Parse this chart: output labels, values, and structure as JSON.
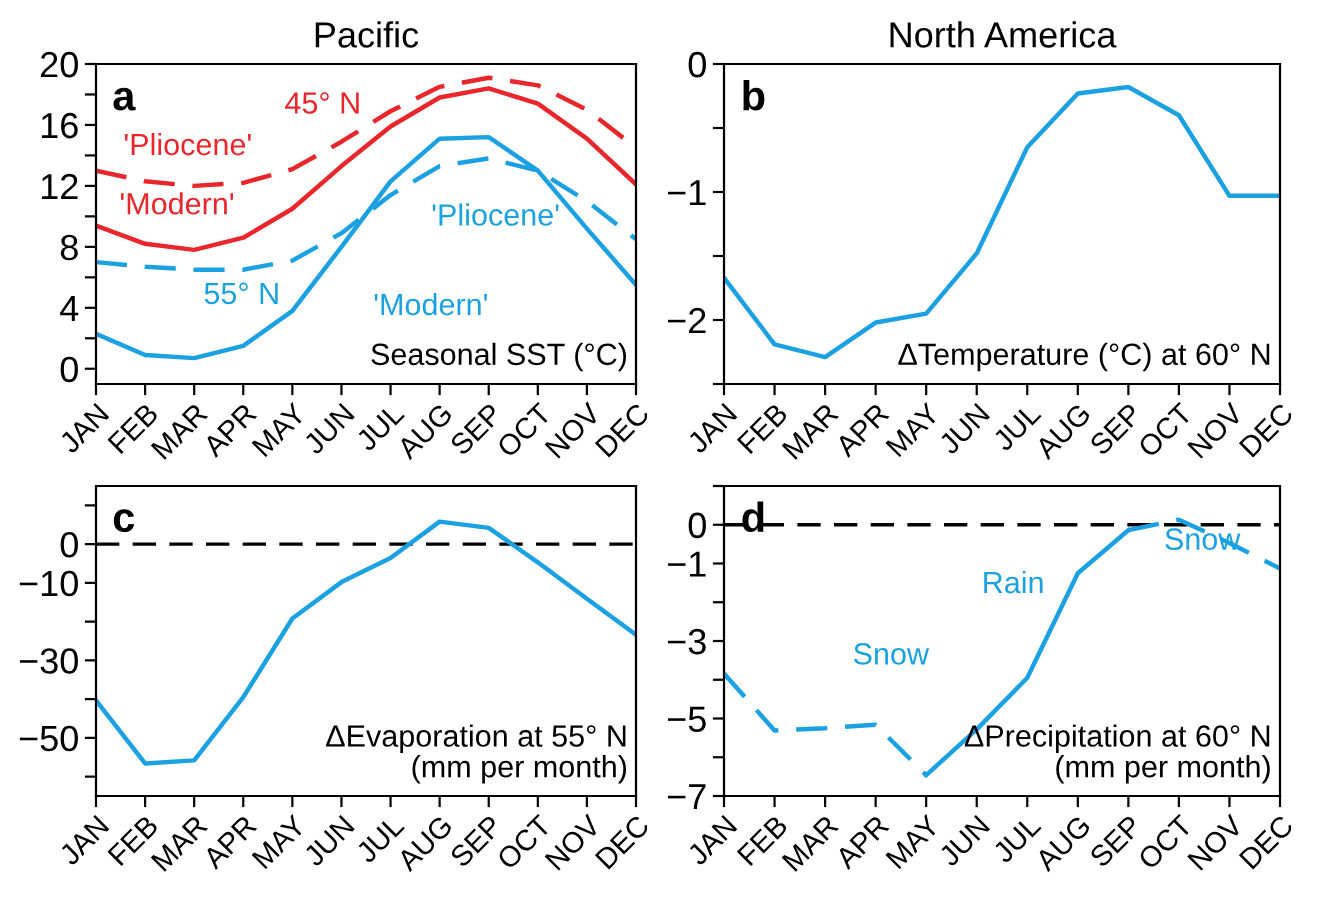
{
  "chart_data": [
    {
      "type": "line",
      "title": "Pacific",
      "categories": [
        "JAN",
        "FEB",
        "MAR",
        "APR",
        "MAY",
        "JUN",
        "JUL",
        "AUG",
        "SEP",
        "OCT",
        "NOV",
        "DEC"
      ],
      "series": [
        {
          "color": "#e8262b",
          "line_style": "solid",
          "values": [
            9.4,
            8.2,
            7.8,
            8.6,
            10.5,
            13.3,
            15.9,
            17.8,
            18.4,
            17.4,
            15.1,
            12.1
          ]
        },
        {
          "color": "#e8262b",
          "line_style": "dashed",
          "values": [
            13.0,
            12.3,
            12.0,
            12.2,
            13.1,
            14.9,
            16.9,
            18.5,
            19.1,
            18.6,
            17.0,
            14.5
          ]
        },
        {
          "color": "#1ba1e2",
          "line_style": "solid",
          "values": [
            2.3,
            0.9,
            0.7,
            1.5,
            3.8,
            8.0,
            12.3,
            15.1,
            15.2,
            13.0,
            9.2,
            5.5
          ]
        },
        {
          "color": "#1ba1e2",
          "line_style": "dashed",
          "values": [
            7.0,
            6.7,
            6.5,
            6.5,
            7.1,
            8.9,
            11.4,
            13.3,
            13.8,
            13.0,
            11.0,
            8.5
          ]
        }
      ],
      "ylim": [
        -1,
        20
      ],
      "yticks": [
        0,
        {
          "value": 2,
          "label": null
        },
        4,
        {
          "value": 6,
          "label": null
        },
        8,
        {
          "value": 10,
          "label": null
        },
        12,
        {
          "value": 14,
          "label": null
        },
        16,
        {
          "value": 18,
          "label": null
        },
        20
      ],
      "annotations": [
        "a",
        "Seasonal SST (°C)",
        "45° N",
        "'Pliocene'",
        "'Modern'",
        "55° N",
        "'Pliocene'",
        "'Modern'"
      ],
      "grid": false,
      "legend": false
    },
    {
      "type": "line",
      "title": "North America",
      "categories": [
        "JAN",
        "FEB",
        "MAR",
        "APR",
        "MAY",
        "JUN",
        "JUL",
        "AUG",
        "SEP",
        "OCT",
        "NOV",
        "DEC"
      ],
      "series": [
        {
          "color": "#1ba1e2",
          "line_style": "solid",
          "values": [
            -1.67,
            -2.19,
            -2.29,
            -2.02,
            -1.95,
            -1.48,
            -0.65,
            -0.23,
            -0.18,
            -0.4,
            -1.03,
            -1.03
          ]
        }
      ],
      "ylim": [
        -2.5,
        0
      ],
      "yticks": [
        {
          "value": -2.5,
          "label": null
        },
        {
          "value": -2,
          "label": "−2"
        },
        {
          "value": -1.5,
          "label": null
        },
        {
          "value": -1,
          "label": "−1"
        },
        {
          "value": -0.5,
          "label": null
        },
        0
      ],
      "annotations": [
        "b",
        "ΔTemperature (°C) at 60° N"
      ],
      "grid": false,
      "legend": false
    },
    {
      "type": "line",
      "categories": [
        "JAN",
        "FEB",
        "MAR",
        "APR",
        "MAY",
        "JUN",
        "JUL",
        "AUG",
        "SEP",
        "OCT",
        "NOV",
        "DEC"
      ],
      "series": [
        {
          "color": "#1ba1e2",
          "line_style": "solid",
          "values": [
            -40.3,
            -56.6,
            -55.8,
            -39.5,
            -19.2,
            -9.8,
            -3.6,
            5.8,
            4.2,
            -4.7,
            -14.1,
            -23.4
          ]
        }
      ],
      "ylim": [
        -65,
        15
      ],
      "yticks": [
        {
          "value": -60,
          "label": null
        },
        {
          "value": -50,
          "label": "−50"
        },
        {
          "value": -40,
          "label": null
        },
        {
          "value": -30,
          "label": "−30"
        },
        {
          "value": -20,
          "label": null
        },
        {
          "value": -10,
          "label": "−10"
        },
        0,
        {
          "value": 10,
          "label": null
        }
      ],
      "ref_lines": [
        {
          "axis": "y",
          "value": 0,
          "color": "#000000",
          "line_style": "dashed"
        }
      ],
      "annotations": [
        "c",
        "ΔEvaporation at 55° N\n(mm per month)"
      ],
      "grid": false,
      "legend": false
    },
    {
      "type": "line",
      "categories": [
        "JAN",
        "FEB",
        "MAR",
        "APR",
        "MAY",
        "JUN",
        "JUL",
        "AUG",
        "SEP",
        "OCT",
        "NOV",
        "DEC"
      ],
      "series": [
        {
          "color": "#1ba1e2",
          "line_style": "dashed",
          "values": [
            -3.84,
            -5.31,
            -5.25,
            -5.16,
            -6.46,
            null,
            null,
            null,
            null,
            null,
            null,
            null
          ]
        },
        {
          "color": "#1ba1e2",
          "line_style": "solid",
          "values": [
            null,
            null,
            null,
            null,
            -6.46,
            -5.28,
            -3.95,
            -1.25,
            -0.14,
            null,
            null,
            null
          ]
        },
        {
          "color": "#1ba1e2",
          "line_style": "dashed",
          "values": [
            null,
            null,
            null,
            null,
            null,
            null,
            null,
            null,
            -0.14,
            0.13,
            -0.47,
            -1.13
          ]
        }
      ],
      "ylim": [
        -7,
        1
      ],
      "yticks": [
        {
          "value": -7,
          "label": "−7"
        },
        {
          "value": -6,
          "label": null
        },
        {
          "value": -5,
          "label": "−5"
        },
        {
          "value": -4,
          "label": null
        },
        {
          "value": -3,
          "label": "−3"
        },
        {
          "value": -2,
          "label": null
        },
        {
          "value": -1,
          "label": "−1"
        },
        0,
        {
          "value": 1,
          "label": null
        }
      ],
      "ref_lines": [
        {
          "axis": "y",
          "value": 0,
          "color": "#000000",
          "line_style": "dashed"
        }
      ],
      "annotations": [
        "d",
        "ΔPrecipitation at 60° N\n(mm per month)",
        "Snow",
        "Rain",
        "Snow"
      ],
      "grid": false,
      "legend": false
    }
  ]
}
